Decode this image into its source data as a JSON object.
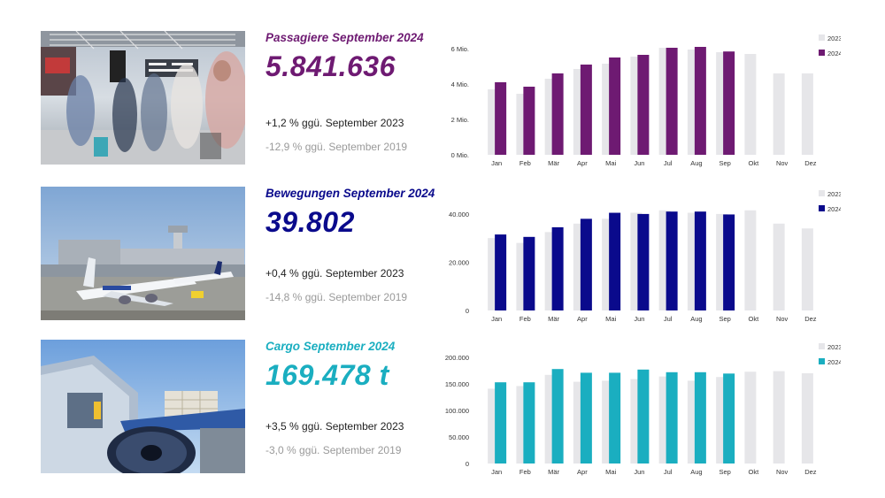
{
  "colors": {
    "prev": "#e6e6e9",
    "pax": "#6e1a72",
    "mov": "#0a0a8c",
    "cargo": "#1aaec0"
  },
  "sections": [
    {
      "title": "Passagiere September 2024",
      "value": "5.841.636",
      "cmp_prev_year": "+1,2 % ggü. September 2023",
      "cmp_2019": "-12,9 % ggü. September 2019",
      "photo_icon": "airport-terminal-photo"
    },
    {
      "title": "Bewegungen September 2024",
      "value": "39.802",
      "cmp_prev_year": "+0,4 % ggü. September 2023",
      "cmp_2019": "-14,8 % ggü. September 2019",
      "photo_icon": "aircraft-apron-photo"
    },
    {
      "title": "Cargo September 2024",
      "value": "169.478 t",
      "cmp_prev_year": "+3,5 % ggü. September 2023",
      "cmp_2019": "-3,0 % ggü. September 2019",
      "photo_icon": "cargo-loading-photo"
    }
  ],
  "chart_data": [
    {
      "type": "bar",
      "categories": [
        "Jan",
        "Feb",
        "Mär",
        "Apr",
        "Mai",
        "Jun",
        "Jul",
        "Aug",
        "Sep",
        "Okt",
        "Nov",
        "Dez"
      ],
      "series": [
        {
          "name": "2023",
          "color": "#e6e6e9",
          "values": [
            3.7,
            3.45,
            4.3,
            4.85,
            5.15,
            5.55,
            6.05,
            5.95,
            5.8,
            5.7,
            4.6,
            4.6
          ]
        },
        {
          "name": "2024",
          "color": "#6e1a72",
          "values": [
            4.1,
            3.85,
            4.6,
            5.1,
            5.5,
            5.65,
            6.05,
            6.1,
            5.84,
            null,
            null,
            null
          ]
        }
      ],
      "ylim": [
        0,
        6
      ],
      "yticks": [
        {
          "v": 0,
          "label": "0 Mio."
        },
        {
          "v": 2,
          "label": "2 Mio."
        },
        {
          "v": 4,
          "label": "4 Mio."
        },
        {
          "v": 6,
          "label": "6 Mio."
        }
      ],
      "legend": "top-right",
      "grid": false
    },
    {
      "type": "bar",
      "categories": [
        "Jan",
        "Feb",
        "Mär",
        "Apr",
        "Mai",
        "Jun",
        "Jul",
        "Aug",
        "Sep",
        "Okt",
        "Nov",
        "Dez"
      ],
      "series": [
        {
          "name": "2023",
          "color": "#e6e6e9",
          "values": [
            30000,
            28000,
            32500,
            36000,
            38000,
            40500,
            41500,
            40500,
            40000,
            41500,
            36000,
            34000
          ]
        },
        {
          "name": "2024",
          "color": "#0a0a8c",
          "values": [
            31500,
            30500,
            34500,
            38000,
            40500,
            40000,
            41000,
            41000,
            39802,
            null,
            null,
            null
          ]
        }
      ],
      "ylim": [
        0,
        44000
      ],
      "yticks": [
        {
          "v": 0,
          "label": "0"
        },
        {
          "v": 20000,
          "label": "20.000"
        },
        {
          "v": 40000,
          "label": "40.000"
        }
      ],
      "legend": "top-right",
      "grid": false
    },
    {
      "type": "bar",
      "categories": [
        "Jan",
        "Feb",
        "Mär",
        "Apr",
        "Mai",
        "Jun",
        "Jul",
        "Aug",
        "Sep",
        "Okt",
        "Nov",
        "Dez"
      ],
      "series": [
        {
          "name": "2023",
          "color": "#e6e6e9",
          "values": [
            141000,
            146000,
            167000,
            154000,
            156000,
            159000,
            164000,
            156000,
            163000,
            173000,
            174000,
            170000
          ]
        },
        {
          "name": "2024",
          "color": "#1aaec0",
          "values": [
            153000,
            153000,
            178000,
            171000,
            171000,
            177000,
            172000,
            172000,
            169478,
            null,
            null,
            null
          ]
        }
      ],
      "ylim": [
        0,
        200000
      ],
      "yticks": [
        {
          "v": 0,
          "label": "0"
        },
        {
          "v": 50000,
          "label": "50.000"
        },
        {
          "v": 100000,
          "label": "100.000"
        },
        {
          "v": 150000,
          "label": "150.000"
        },
        {
          "v": 200000,
          "label": "200.000"
        }
      ],
      "legend": "top-right",
      "grid": false
    }
  ]
}
